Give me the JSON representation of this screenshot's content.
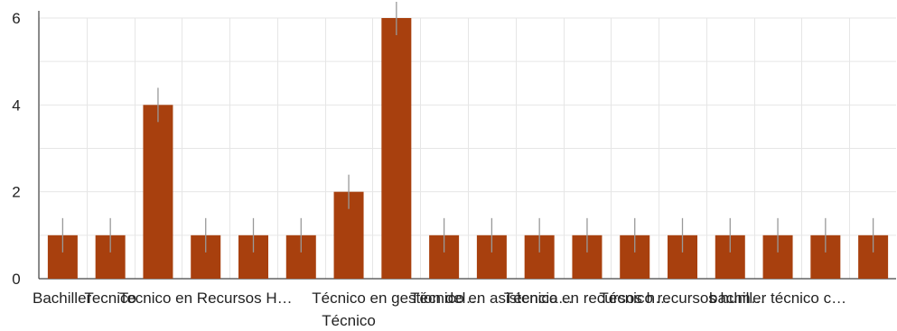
{
  "chart_data": {
    "type": "bar",
    "categories": [
      "Bachiller",
      "Tecnico",
      "",
      "Tecnico en Recursos H…",
      "",
      "",
      "Técnico",
      "Técnico en gestion del…",
      "",
      "Técnico en asistencia…",
      "",
      "Técnico en recursos h…",
      "",
      "Técnico recursos hum…",
      "",
      "bachiller técnico c…",
      "",
      ""
    ],
    "values": [
      1,
      1,
      4,
      1,
      1,
      1,
      2,
      6,
      1,
      1,
      1,
      1,
      1,
      1,
      1,
      1,
      1,
      1
    ],
    "y_ticks": [
      0,
      2,
      4,
      6
    ],
    "ylim": [
      0,
      6
    ],
    "title": "",
    "xlabel": "",
    "ylabel": "",
    "grid": true,
    "colors": {
      "bar": "#A8400E",
      "error_bar": "#999999",
      "grid": "#e6e6e6",
      "axis": "#444444"
    }
  }
}
